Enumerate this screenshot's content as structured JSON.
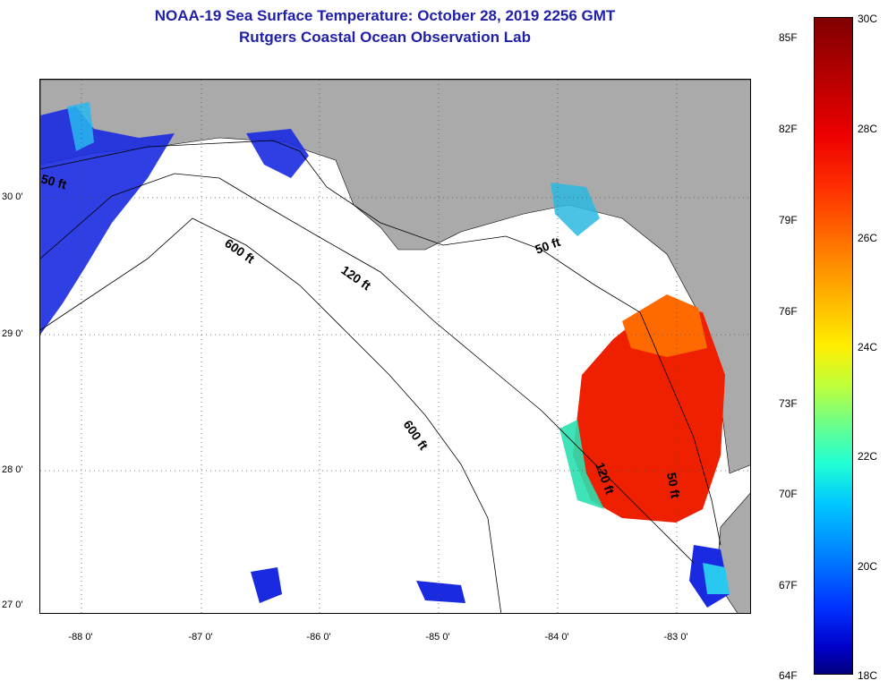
{
  "title": "NOAA-19 Sea Surface Temperature:  October 28, 2019 2256 GMT",
  "subtitle": "Rutgers Coastal Ocean Observation Lab",
  "lat_labels": [
    "30 0'",
    "29 0'",
    "28 0'",
    "27 0'"
  ],
  "lon_labels": [
    "-88 0'",
    "-87 0'",
    "-86 0'",
    "-85 0'",
    "-84 0'",
    "-83 0'"
  ],
  "contour_labels": {
    "c50_west": "50 ft",
    "c50_east": "50 ft",
    "c50_south": "50 ft",
    "c120": "120 ft",
    "c120_south": "120 ft",
    "c600_north": "600 ft",
    "c600_south": "600 ft"
  },
  "colorbar": {
    "fahrenheit": [
      "85F",
      "82F",
      "79F",
      "76F",
      "73F",
      "70F",
      "67F",
      "64F"
    ],
    "celsius": [
      "30C",
      "28C",
      "26C",
      "24C",
      "22C",
      "20C",
      "18C"
    ]
  },
  "colors": {
    "land": "#aaaaaa",
    "ocean_nodata": "#ffffff",
    "title": "#1f1fa8"
  }
}
